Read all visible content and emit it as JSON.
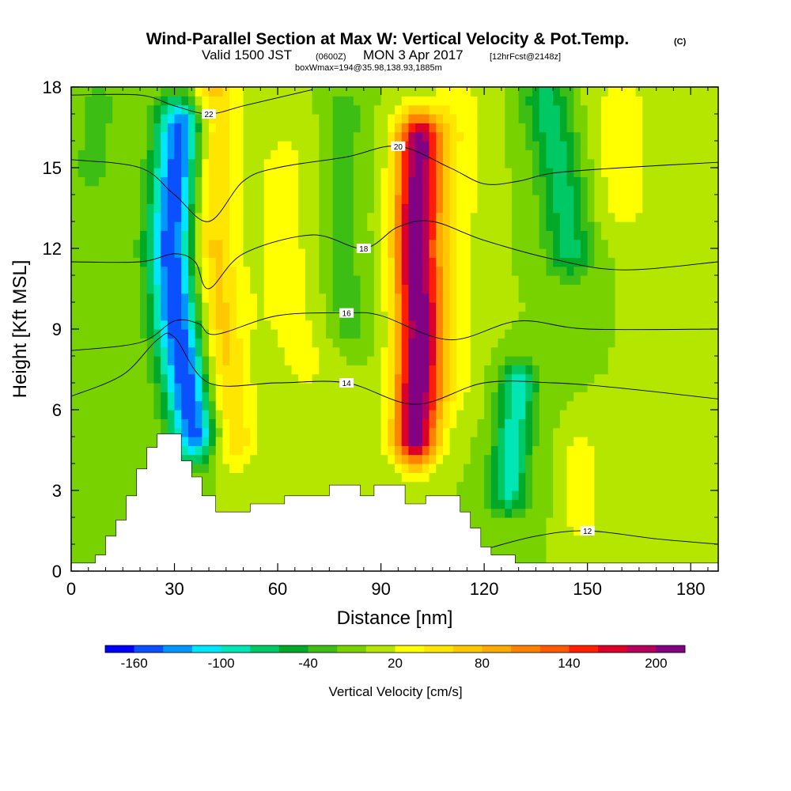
{
  "figure": {
    "title": "Wind-Parallel Section at Max W: Vertical Velocity & Pot.Temp.",
    "copyright_mark": "(C)",
    "valid_prefix": "Valid 1500 JST",
    "valid_utc": "(0600Z)",
    "valid_date": "MON 3 Apr 2017",
    "forecast_info": "[12hrFcst@2148z]",
    "box_info": "boxWmax=194@35.98,138.93,1885m"
  },
  "chart_data": {
    "type": "heatmap",
    "xlabel": "Distance [nm]",
    "ylabel": "Height [Kft MSL]",
    "xlim": [
      0,
      188
    ],
    "ylim": [
      0,
      18
    ],
    "x_ticks": [
      0,
      30,
      60,
      90,
      120,
      150,
      180
    ],
    "y_ticks": [
      0,
      3,
      6,
      9,
      12,
      15,
      18
    ],
    "colorbar": {
      "label": "Vertical Velocity [cm/s]",
      "tick_labels": [
        "-160",
        "-100",
        "-40",
        "20",
        "80",
        "140",
        "200"
      ],
      "tick_values": [
        -160,
        -100,
        -40,
        20,
        80,
        140,
        200
      ],
      "boundaries": [
        -180,
        -160,
        -140,
        -120,
        -100,
        -80,
        -60,
        -40,
        -20,
        0,
        20,
        40,
        60,
        80,
        100,
        120,
        140,
        160,
        180,
        200,
        220
      ],
      "colors": [
        "#0000ff",
        "#0a50ff",
        "#0096ff",
        "#00e6ff",
        "#00e6b4",
        "#00c864",
        "#00aa28",
        "#3cbe14",
        "#78d200",
        "#b4e600",
        "#ffff00",
        "#ffe600",
        "#ffc800",
        "#ffaa00",
        "#ff8200",
        "#ff5a00",
        "#ff1e00",
        "#dc0028",
        "#b4005a",
        "#820082"
      ]
    },
    "background_w": 0,
    "velocity_features": [
      {
        "name": "downdraft",
        "points": [
          [
            32,
            16.5
          ],
          [
            29,
            12
          ],
          [
            31,
            9
          ],
          [
            36,
            5.2
          ]
        ],
        "w": -160,
        "width": 5
      },
      {
        "name": "updraft-west",
        "points": [
          [
            41,
            17.8
          ],
          [
            40,
            13
          ],
          [
            43,
            9
          ],
          [
            46,
            5
          ]
        ],
        "w": 70,
        "width": 5
      },
      {
        "name": "updraft-main",
        "points": [
          [
            101,
            16
          ],
          [
            100,
            12
          ],
          [
            101,
            9
          ],
          [
            100,
            5
          ]
        ],
        "w": 210,
        "width": 4.5
      },
      {
        "name": "yellow-east",
        "points": [
          [
            112,
            17
          ],
          [
            110,
            12
          ],
          [
            109,
            7
          ]
        ],
        "w": 35,
        "width": 6
      },
      {
        "name": "downdraft-east",
        "points": [
          [
            130,
            7
          ],
          [
            128,
            4.5
          ],
          [
            127,
            3
          ]
        ],
        "w": -90,
        "width": 4
      },
      {
        "name": "downdraft-ne",
        "points": [
          [
            138,
            17.5
          ],
          [
            142,
            15
          ],
          [
            145,
            12
          ]
        ],
        "w": -70,
        "width": 5
      },
      {
        "name": "sink-80",
        "points": [
          [
            79,
            17
          ],
          [
            78,
            13
          ],
          [
            80,
            9
          ]
        ],
        "w": -35,
        "width": 4
      },
      {
        "name": "sink-8",
        "points": [
          [
            8,
            17.5
          ],
          [
            6,
            15
          ]
        ],
        "w": -30,
        "width": 4
      },
      {
        "name": "yellow-60",
        "points": [
          [
            62,
            15
          ],
          [
            62,
            10
          ],
          [
            68,
            8
          ]
        ],
        "w": 25,
        "width": 8
      },
      {
        "name": "yellow-155",
        "points": [
          [
            160,
            17
          ],
          [
            160,
            14
          ]
        ],
        "w": 30,
        "width": 7
      },
      {
        "name": "yellow-147",
        "points": [
          [
            148,
            4.5
          ],
          [
            148,
            2
          ]
        ],
        "w": 40,
        "width": 3
      }
    ],
    "terrain": [
      [
        0,
        0.3
      ],
      [
        7,
        0.3
      ],
      [
        7,
        0.6
      ],
      [
        10,
        0.6
      ],
      [
        10,
        1.3
      ],
      [
        13,
        1.3
      ],
      [
        13,
        1.9
      ],
      [
        16,
        1.9
      ],
      [
        16,
        2.8
      ],
      [
        19,
        2.8
      ],
      [
        19,
        3.8
      ],
      [
        22,
        3.8
      ],
      [
        22,
        4.6
      ],
      [
        25,
        4.6
      ],
      [
        25,
        5.1
      ],
      [
        32,
        5.1
      ],
      [
        32,
        4.1
      ],
      [
        35,
        4.1
      ],
      [
        35,
        3.5
      ],
      [
        38,
        3.5
      ],
      [
        38,
        2.8
      ],
      [
        42,
        2.8
      ],
      [
        42,
        2.2
      ],
      [
        52,
        2.2
      ],
      [
        52,
        2.5
      ],
      [
        62,
        2.5
      ],
      [
        62,
        2.8
      ],
      [
        75,
        2.8
      ],
      [
        75,
        3.2
      ],
      [
        84,
        3.2
      ],
      [
        84,
        2.8
      ],
      [
        88,
        2.8
      ],
      [
        88,
        3.2
      ],
      [
        97,
        3.2
      ],
      [
        97,
        2.5
      ],
      [
        103,
        2.5
      ],
      [
        103,
        2.8
      ],
      [
        113,
        2.8
      ],
      [
        113,
        2.2
      ],
      [
        116,
        2.2
      ],
      [
        116,
        1.6
      ],
      [
        119,
        1.6
      ],
      [
        119,
        0.9
      ],
      [
        122,
        0.9
      ],
      [
        122,
        0.6
      ],
      [
        129,
        0.6
      ],
      [
        129,
        0.3
      ],
      [
        188,
        0.3
      ]
    ],
    "isentropes": [
      {
        "label": "22",
        "points": [
          [
            0,
            17.7
          ],
          [
            20,
            17.7
          ],
          [
            30,
            17.3
          ],
          [
            40,
            17.0
          ],
          [
            50,
            17.3
          ],
          [
            60,
            17.6
          ],
          [
            70,
            17.9
          ]
        ]
      },
      {
        "label": "20",
        "points": [
          [
            0,
            15.3
          ],
          [
            20,
            15.0
          ],
          [
            30,
            14.0
          ],
          [
            40,
            13.0
          ],
          [
            50,
            14.5
          ],
          [
            60,
            15.0
          ],
          [
            80,
            15.4
          ],
          [
            95,
            15.8
          ],
          [
            110,
            15.0
          ],
          [
            120,
            14.4
          ],
          [
            130,
            14.5
          ],
          [
            140,
            14.8
          ],
          [
            160,
            15.0
          ],
          [
            188,
            15.2
          ]
        ]
      },
      {
        "label": "18",
        "points": [
          [
            0,
            11.5
          ],
          [
            20,
            11.5
          ],
          [
            30,
            11.8
          ],
          [
            36,
            11.5
          ],
          [
            40,
            10.5
          ],
          [
            50,
            11.8
          ],
          [
            70,
            12.5
          ],
          [
            85,
            12.0
          ],
          [
            95,
            12.8
          ],
          [
            105,
            13.0
          ],
          [
            120,
            12.3
          ],
          [
            140,
            11.6
          ],
          [
            160,
            11.2
          ],
          [
            188,
            11.5
          ]
        ]
      },
      {
        "label": "16",
        "points": [
          [
            0,
            8.2
          ],
          [
            20,
            8.5
          ],
          [
            30,
            9.3
          ],
          [
            37,
            9.2
          ],
          [
            42,
            8.8
          ],
          [
            60,
            9.5
          ],
          [
            80,
            9.6
          ],
          [
            90,
            9.5
          ],
          [
            110,
            8.6
          ],
          [
            130,
            9.3
          ],
          [
            150,
            9.0
          ],
          [
            188,
            9.0
          ]
        ]
      },
      {
        "label": "14",
        "points": [
          [
            0,
            6.5
          ],
          [
            15,
            7.3
          ],
          [
            25,
            8.6
          ],
          [
            30,
            8.7
          ],
          [
            40,
            7.0
          ],
          [
            60,
            7.0
          ],
          [
            80,
            7.0
          ],
          [
            100,
            6.2
          ],
          [
            120,
            7.0
          ],
          [
            140,
            7.0
          ],
          [
            160,
            6.8
          ],
          [
            188,
            6.4
          ]
        ]
      },
      {
        "label": "12",
        "points": [
          [
            110,
            0.4
          ],
          [
            120,
            0.8
          ],
          [
            135,
            1.3
          ],
          [
            150,
            1.5
          ],
          [
            170,
            1.2
          ],
          [
            188,
            1.0
          ]
        ]
      }
    ]
  }
}
